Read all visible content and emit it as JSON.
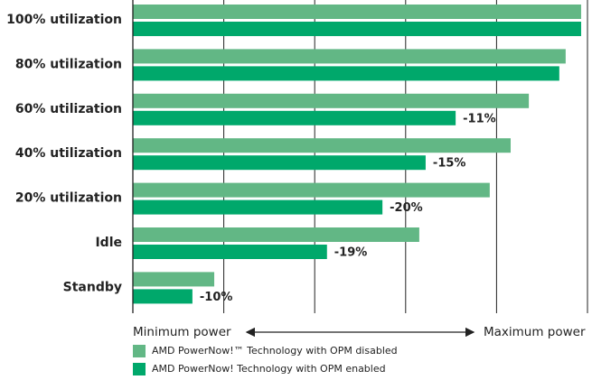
{
  "chart_data": {
    "type": "hbar",
    "categories": [
      "100% utilization",
      "80% utilization",
      "60% utilization",
      "40% utilization",
      "20% utilization",
      "Idle",
      "Standby"
    ],
    "series": [
      {
        "name": "AMD PowerNow!™ Technology with OPM disabled",
        "color": "#62b785",
        "values": [
          98.6,
          95.2,
          87.1,
          83.1,
          78.5,
          63.0,
          17.9
        ]
      },
      {
        "name": "AMD PowerNow! Technology with OPM enabled",
        "color": "#00a86b",
        "values": [
          98.6,
          93.8,
          71.0,
          64.4,
          54.9,
          42.7,
          13.1
        ],
        "annotations": [
          null,
          null,
          "-11%",
          "-15%",
          "-20%",
          "-19%",
          "-10%"
        ]
      }
    ],
    "xlim": [
      0,
      100
    ],
    "xticks": [
      0,
      20,
      40,
      60,
      80,
      100
    ],
    "grid": true,
    "xlabel_min": "Minimum power",
    "xlabel_max": "Maximum power"
  }
}
